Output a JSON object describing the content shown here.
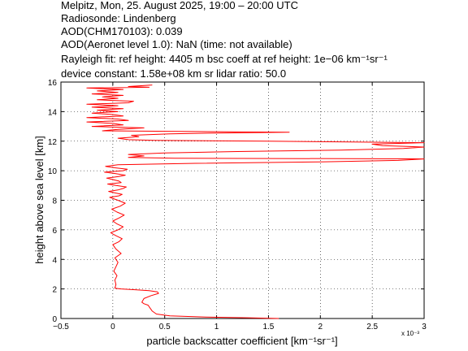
{
  "header": {
    "line1": "Melpitz, Mon, 25. August 2025, 19:00 – 20:00 UTC",
    "line2": "Radiosonde: Lindenberg",
    "line3": "AOD(CHM170103): 0.039",
    "line4": "AOD(Aeronet level 1.0): NaN   (time: not available)",
    "line5": "Rayleigh fit:     ref height: 4405 m     bsc coeff at ref height: 1e−06 km⁻¹sr⁻¹",
    "line6": "device constant: 1.58e+08 km sr     lidar ratio: 50.0"
  },
  "chart_data": {
    "type": "line",
    "xlabel": "particle backscatter coefficient [km⁻¹sr⁻¹]",
    "ylabel": "height above sea level [km]",
    "x_multiplier": "x 10⁻³",
    "xlim": [
      -0.5,
      3
    ],
    "ylim": [
      0,
      16
    ],
    "xticks": [
      "−0.5",
      "0",
      "0.5",
      "1",
      "1.5",
      "2",
      "2.5",
      "3"
    ],
    "yticks": [
      "0",
      "2",
      "4",
      "6",
      "8",
      "10",
      "12",
      "14",
      "16"
    ],
    "grid": true,
    "line_color": "#ff0000",
    "series": [
      {
        "x": [
          1.6,
          1.3,
          0.9,
          0.55,
          0.42,
          0.38,
          0.36,
          0.34,
          0.3,
          0.28,
          0.3,
          0.37,
          0.44,
          0.43,
          0.35,
          0.2,
          0.08,
          0.02,
          0.03,
          0.02,
          0.04,
          0.01,
          0.03,
          0.05,
          0.02,
          0.08,
          0.03,
          0.0,
          0.06,
          0.09,
          0.03,
          -0.02,
          0.05,
          0.1,
          0.04,
          0.0,
          0.06,
          0.11,
          0.04,
          -0.01,
          0.07,
          0.12,
          0.05,
          -0.03,
          0.06,
          0.09,
          0.02,
          -0.04,
          0.05,
          0.1,
          0.13,
          0.03,
          -0.05,
          0.08,
          0.06,
          0.0,
          -0.06,
          0.05,
          0.12,
          0.03,
          -0.08,
          0.1,
          0.14,
          0.02,
          -0.07,
          0.05,
          0.8,
          2.0,
          2.75,
          3.0,
          0.6,
          0.15,
          0.3,
          0.15,
          0.5,
          1.2,
          2.2,
          2.8,
          3.0,
          2.6,
          2.5,
          3.0,
          1.5,
          0.4,
          0.15,
          0.05,
          0.25,
          0.18,
          0.55,
          1.0,
          1.7,
          0.8,
          -0.1,
          0.05,
          0.3,
          -0.2,
          0.1,
          0.0,
          -0.25,
          0.15,
          0.05,
          -0.25,
          0.1,
          0.0,
          -0.2,
          0.05,
          -0.15,
          0.1,
          -0.2,
          0.05,
          -0.25,
          0.15,
          0.2,
          -0.15,
          0.05,
          -0.1,
          0.1,
          -0.2,
          0.05,
          -0.15,
          0.1,
          -0.1,
          -0.25,
          0.35,
          0.15,
          0.38
        ],
        "y": [
          0.0,
          0.05,
          0.1,
          0.18,
          0.3,
          0.5,
          0.7,
          0.9,
          1.0,
          1.1,
          1.35,
          1.55,
          1.7,
          1.8,
          1.88,
          1.95,
          2.0,
          2.05,
          2.3,
          2.6,
          2.9,
          3.2,
          3.5,
          3.8,
          4.1,
          4.4,
          4.7,
          5.0,
          5.2,
          5.4,
          5.6,
          5.8,
          6.0,
          6.2,
          6.4,
          6.6,
          6.8,
          7.0,
          7.2,
          7.4,
          7.6,
          7.8,
          8.0,
          8.2,
          8.3,
          8.4,
          8.5,
          8.6,
          8.7,
          8.8,
          8.9,
          9.0,
          9.1,
          9.2,
          9.3,
          9.4,
          9.5,
          9.6,
          9.7,
          9.8,
          9.9,
          10.0,
          10.1,
          10.2,
          10.3,
          10.4,
          10.5,
          10.6,
          10.7,
          10.8,
          10.85,
          10.9,
          11.0,
          11.1,
          11.2,
          11.3,
          11.4,
          11.5,
          11.6,
          11.7,
          11.8,
          11.9,
          12.0,
          12.05,
          12.1,
          12.2,
          12.3,
          12.4,
          12.5,
          12.55,
          12.6,
          12.65,
          12.7,
          12.8,
          12.9,
          13.0,
          13.1,
          13.2,
          13.3,
          13.4,
          13.5,
          13.6,
          13.7,
          13.8,
          13.9,
          14.0,
          14.1,
          14.2,
          14.3,
          14.4,
          14.5,
          14.6,
          14.7,
          14.8,
          14.9,
          15.0,
          15.1,
          15.2,
          15.3,
          15.4,
          15.5,
          15.55,
          15.6,
          15.65,
          15.7,
          15.8
        ]
      }
    ]
  }
}
